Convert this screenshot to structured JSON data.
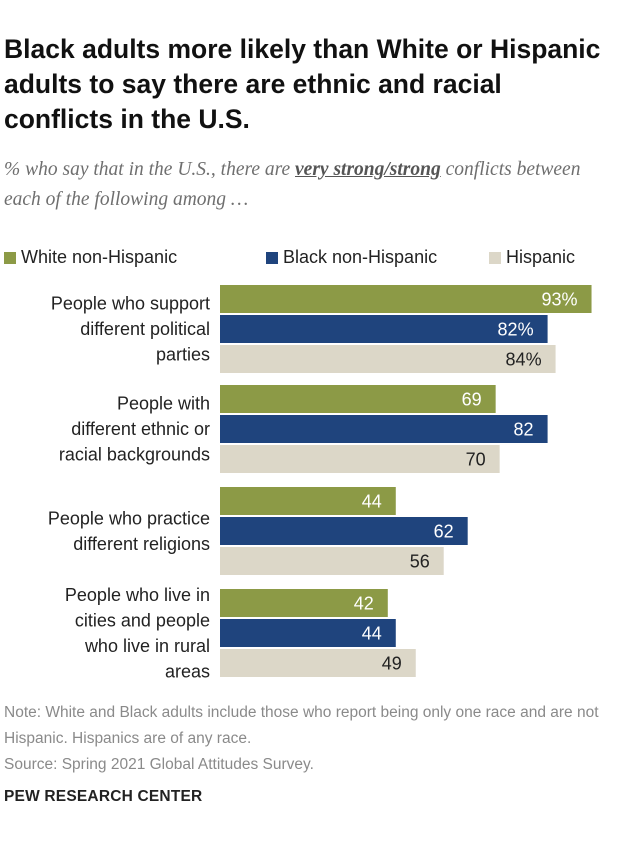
{
  "title": "Black adults more likely than White or Hispanic adults to say there are ethnic and racial conflicts in the U.S.",
  "subtitle": {
    "before": "% who say that in the U.S., there are ",
    "emphasis": "very strong/strong",
    "after": " conflicts between each of the following among …"
  },
  "legend": [
    {
      "label": "White non-Hispanic",
      "color": "#8c9a46"
    },
    {
      "label": "Black non-Hispanic",
      "color": "#1f447d"
    },
    {
      "label": "Hispanic",
      "color": "#dcd7c8"
    }
  ],
  "chart_data": {
    "type": "bar",
    "orientation": "horizontal",
    "categories": [
      [
        "People who support",
        "different political",
        "parties"
      ],
      [
        "People with",
        "different ethnic or",
        "racial backgrounds"
      ],
      [
        "People who practice",
        "different religions"
      ],
      [
        "People who live in",
        "cities and people",
        "who live in rural",
        "areas"
      ]
    ],
    "series": [
      {
        "name": "White non-Hispanic",
        "color": "#8c9a46",
        "label_color": "#ffffff",
        "values": [
          93,
          69,
          44,
          42
        ],
        "labels": [
          "93%",
          "69",
          "44",
          "42"
        ]
      },
      {
        "name": "Black non-Hispanic",
        "color": "#1f447d",
        "label_color": "#ffffff",
        "values": [
          82,
          82,
          62,
          44
        ],
        "labels": [
          "82%",
          "82",
          "62",
          "44"
        ]
      },
      {
        "name": "Hispanic",
        "color": "#dcd7c8",
        "label_color": "#222222",
        "values": [
          84,
          70,
          56,
          49
        ],
        "labels": [
          "84%",
          "70",
          "56",
          "49"
        ]
      }
    ],
    "xlim": [
      0,
      100
    ],
    "grid": false,
    "legend_position": "top"
  },
  "note": "Note: White and Black adults include those who report being only one race and are not Hispanic. Hispanics are of any race.",
  "source": "Source: Spring 2021 Global Attitudes Survey.",
  "footer": "PEW RESEARCH CENTER"
}
